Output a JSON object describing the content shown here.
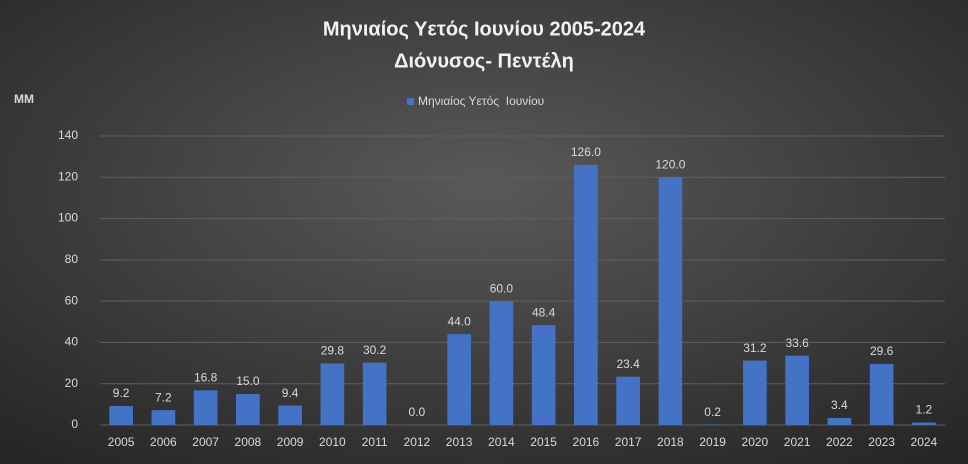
{
  "chart_data": {
    "type": "bar",
    "title": "Μηνιαίος Υετός Ιουνίου 2005-2024",
    "subtitle": "Διόνυσος- Πεντέλη",
    "y_label": "MM",
    "categories": [
      "2005",
      "2006",
      "2007",
      "2008",
      "2009",
      "2010",
      "2011",
      "2012",
      "2013",
      "2014",
      "2015",
      "2016",
      "2017",
      "2018",
      "2019",
      "2020",
      "2021",
      "2022",
      "2023",
      "2024"
    ],
    "series": [
      {
        "name": "Μηνιαίος Υετός  Ιουνίου",
        "color": "#4472c4",
        "values": [
          9.2,
          7.2,
          16.8,
          15.0,
          9.4,
          29.8,
          30.2,
          0.0,
          44.0,
          60.0,
          48.4,
          126.0,
          23.4,
          120.0,
          0.2,
          31.2,
          33.6,
          3.4,
          29.6,
          1.2
        ],
        "value_labels": [
          "9.2",
          "7.2",
          "16.8",
          "15.0",
          "9.4",
          "29.8",
          "30.2",
          "0.0",
          "44.0",
          "60.0",
          "48.4",
          "126.0",
          "23.4",
          "120.0",
          "0.2",
          "31.2",
          "33.6",
          "3.4",
          "29.6",
          "1.2"
        ]
      }
    ],
    "ylim": [
      0,
      140
    ],
    "yticks": [
      0,
      20,
      40,
      60,
      80,
      100,
      120,
      140
    ],
    "grid": true,
    "legend": "top"
  }
}
